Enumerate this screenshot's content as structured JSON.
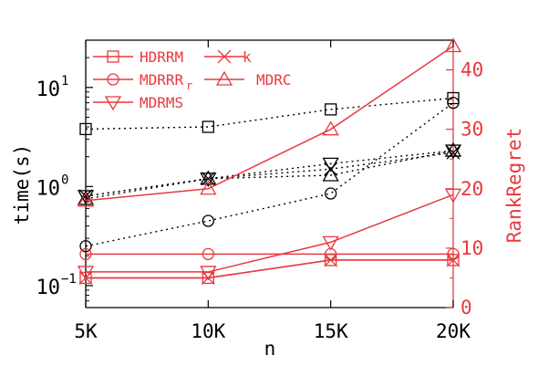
{
  "colors": {
    "time_series": "#000000",
    "regret_series": "#e8393e"
  },
  "chart_data": {
    "type": "line",
    "xlabel": "n",
    "ylabel_left": "time(s)",
    "ylabel_right": "RankRegret",
    "categories": [
      "5K",
      "10K",
      "15K",
      "20K"
    ],
    "x": [
      5000,
      10000,
      15000,
      20000
    ],
    "left_axis": {
      "scale": "log",
      "ylim": [
        0.06,
        30
      ],
      "ticks": [
        {
          "value": 0.1,
          "base": "10",
          "exp": "−1"
        },
        {
          "value": 1,
          "base": "10",
          "exp": "0"
        },
        {
          "value": 10,
          "base": "10",
          "exp": "1"
        }
      ]
    },
    "right_axis": {
      "scale": "linear",
      "ylim": [
        0,
        45
      ],
      "ticks": [
        "0",
        "10",
        "20",
        "30",
        "40"
      ]
    },
    "legend": {
      "placement": "top-left",
      "entries": [
        {
          "marker": "square",
          "label": "HDRRM",
          "sub": ""
        },
        {
          "marker": "x",
          "label": "k",
          "sub": ""
        },
        {
          "marker": "circle",
          "label": "MDRRR",
          "sub": "r"
        },
        {
          "marker": "triangle-up",
          "label": "MDRC",
          "sub": ""
        },
        {
          "marker": "triangle-down",
          "label": "MDRMS",
          "sub": ""
        }
      ]
    },
    "series": [
      {
        "marker": "square",
        "axis": "left",
        "values": [
          3.8,
          4.0,
          6.0,
          7.8
        ]
      },
      {
        "marker": "circle",
        "axis": "left",
        "values": [
          0.25,
          0.45,
          0.85,
          7.0
        ]
      },
      {
        "marker": "triangle-up",
        "axis": "left",
        "values": [
          0.75,
          1.2,
          1.3,
          2.3
        ]
      },
      {
        "marker": "triangle-down",
        "axis": "left",
        "values": [
          0.8,
          1.2,
          1.7,
          2.3
        ]
      },
      {
        "marker": "x",
        "axis": "left",
        "values": [
          0.8,
          1.2,
          1.5,
          2.2
        ]
      },
      {
        "marker": "square",
        "axis": "right",
        "values": [
          5,
          5,
          8,
          8
        ]
      },
      {
        "marker": "x",
        "axis": "right",
        "values": [
          5,
          5,
          8,
          8
        ]
      },
      {
        "marker": "circle",
        "axis": "right",
        "values": [
          9,
          9,
          9,
          9
        ]
      },
      {
        "marker": "triangle-up",
        "axis": "right",
        "values": [
          18,
          20,
          30,
          44
        ]
      },
      {
        "marker": "triangle-down",
        "axis": "right",
        "values": [
          6,
          6,
          11,
          19
        ]
      }
    ]
  }
}
